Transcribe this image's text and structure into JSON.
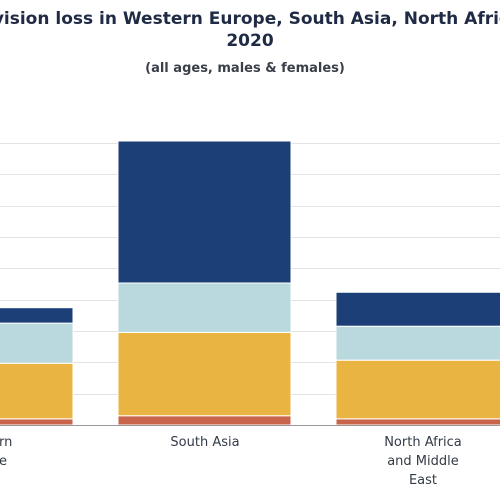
{
  "chart_data": {
    "type": "bar",
    "stacked": true,
    "title_line1": "f vision loss in Western Europe, South Asia, North Africa",
    "title_line2": "2020",
    "subtitle": "(all ages, males & females)",
    "categories": [
      "rn\ne",
      "South Asia",
      "North Africa\nand Middle\nEast"
    ],
    "series": [
      {
        "color": "#c8654a",
        "values": [
          2,
          3,
          2
        ]
      },
      {
        "color": "#eab443",
        "values": [
          18,
          27,
          19
        ]
      },
      {
        "color": "#b9d9de",
        "values": [
          13,
          16,
          11
        ]
      },
      {
        "color": "#1c3f77",
        "values": [
          5,
          46,
          11
        ]
      }
    ],
    "ylim": [
      0,
      92
    ],
    "grid": true,
    "gridline_count": 9
  }
}
